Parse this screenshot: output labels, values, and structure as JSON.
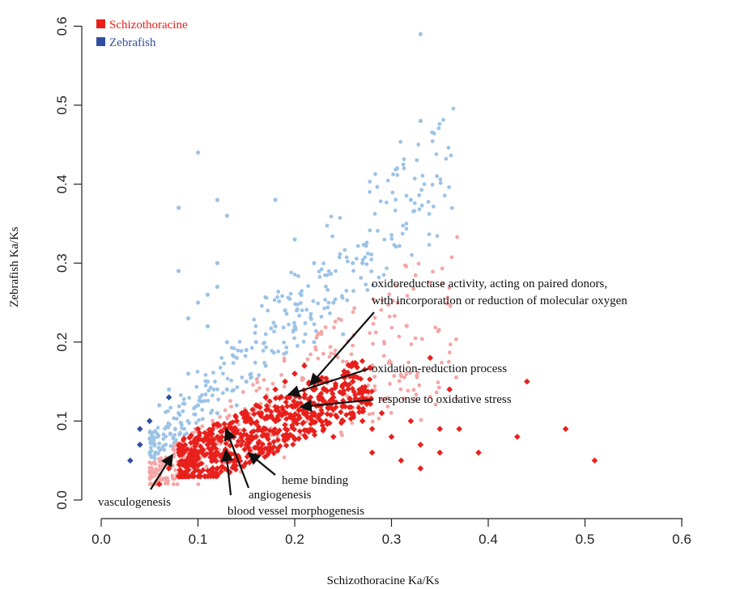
{
  "chart_data": {
    "type": "scatter",
    "xlabel": "Schizothoracine Ka/Ks",
    "ylabel": "Zebrafish Ka/Ks",
    "xlim": [
      -0.02,
      0.62
    ],
    "ylim": [
      -0.01,
      0.61
    ],
    "xticks": [
      "0.0",
      "0.1",
      "0.2",
      "0.3",
      "0.4",
      "0.5",
      "0.6"
    ],
    "yticks": [
      "0.0",
      "0.1",
      "0.2",
      "0.3",
      "0.4",
      "0.5",
      "0.6"
    ],
    "grid": false,
    "legend_position": "top-left",
    "colors": {
      "schizothoracine": "#e8201c",
      "schizothoracine_light": "#f4a6a6",
      "zebrafish": "#2f4f9e",
      "zebrafish_light": "#9dc3e6"
    },
    "series": [
      {
        "name": "Schizothoracine",
        "color": "#e8201c",
        "marker": "diamond",
        "points": [
          [
            0.08,
            0.03
          ],
          [
            0.09,
            0.05
          ],
          [
            0.1,
            0.06
          ],
          [
            0.11,
            0.07
          ],
          [
            0.12,
            0.08
          ],
          [
            0.13,
            0.09
          ],
          [
            0.14,
            0.1
          ],
          [
            0.15,
            0.11
          ],
          [
            0.16,
            0.12
          ],
          [
            0.17,
            0.13
          ],
          [
            0.18,
            0.14
          ],
          [
            0.19,
            0.15
          ],
          [
            0.2,
            0.16
          ],
          [
            0.21,
            0.17
          ],
          [
            0.22,
            0.15
          ],
          [
            0.23,
            0.14
          ],
          [
            0.24,
            0.13
          ],
          [
            0.25,
            0.12
          ],
          [
            0.26,
            0.11
          ],
          [
            0.27,
            0.1
          ],
          [
            0.28,
            0.09
          ],
          [
            0.3,
            0.08
          ],
          [
            0.32,
            0.1
          ],
          [
            0.33,
            0.07
          ],
          [
            0.34,
            0.18
          ],
          [
            0.35,
            0.09
          ],
          [
            0.36,
            0.14
          ],
          [
            0.37,
            0.09
          ],
          [
            0.39,
            0.06
          ],
          [
            0.43,
            0.08
          ],
          [
            0.44,
            0.15
          ],
          [
            0.48,
            0.09
          ],
          [
            0.51,
            0.05
          ],
          [
            0.06,
            0.02
          ],
          [
            0.07,
            0.04
          ],
          [
            0.1,
            0.09
          ],
          [
            0.12,
            0.04
          ],
          [
            0.13,
            0.06
          ],
          [
            0.14,
            0.05
          ],
          [
            0.15,
            0.07
          ],
          [
            0.16,
            0.08
          ],
          [
            0.17,
            0.09
          ],
          [
            0.18,
            0.1
          ],
          [
            0.19,
            0.11
          ],
          [
            0.2,
            0.12
          ],
          [
            0.21,
            0.13
          ],
          [
            0.22,
            0.11
          ],
          [
            0.23,
            0.09
          ],
          [
            0.24,
            0.08
          ],
          [
            0.25,
            0.1
          ],
          [
            0.26,
            0.15
          ],
          [
            0.27,
            0.13
          ],
          [
            0.28,
            0.06
          ],
          [
            0.29,
            0.11
          ],
          [
            0.31,
            0.05
          ],
          [
            0.33,
            0.04
          ],
          [
            0.35,
            0.06
          ]
        ]
      },
      {
        "name": "Zebrafish",
        "color": "#2f4f9e",
        "marker": "diamond",
        "points": [
          [
            0.04,
            0.09
          ],
          [
            0.07,
            0.13
          ],
          [
            0.11,
            0.26
          ],
          [
            0.1,
            0.44
          ],
          [
            0.12,
            0.38
          ],
          [
            0.13,
            0.36
          ],
          [
            0.18,
            0.38
          ],
          [
            0.2,
            0.33
          ],
          [
            0.33,
            0.59
          ],
          [
            0.33,
            0.48
          ],
          [
            0.32,
            0.38
          ],
          [
            0.27,
            0.3
          ],
          [
            0.26,
            0.3
          ],
          [
            0.22,
            0.3
          ],
          [
            0.24,
            0.25
          ],
          [
            0.08,
            0.29
          ],
          [
            0.08,
            0.37
          ],
          [
            0.12,
            0.3
          ],
          [
            0.12,
            0.27
          ],
          [
            0.1,
            0.25
          ],
          [
            0.09,
            0.23
          ],
          [
            0.11,
            0.22
          ],
          [
            0.13,
            0.2
          ],
          [
            0.14,
            0.18
          ],
          [
            0.15,
            0.19
          ],
          [
            0.16,
            0.2
          ],
          [
            0.18,
            0.22
          ],
          [
            0.19,
            0.24
          ],
          [
            0.17,
            0.17
          ],
          [
            0.15,
            0.15
          ],
          [
            0.13,
            0.14
          ],
          [
            0.11,
            0.15
          ],
          [
            0.09,
            0.16
          ],
          [
            0.07,
            0.14
          ],
          [
            0.06,
            0.12
          ],
          [
            0.05,
            0.1
          ],
          [
            0.04,
            0.07
          ],
          [
            0.03,
            0.05
          ],
          [
            0.08,
            0.11
          ],
          [
            0.1,
            0.12
          ],
          [
            0.12,
            0.11
          ],
          [
            0.14,
            0.12
          ],
          [
            0.2,
            0.22
          ],
          [
            0.22,
            0.2
          ],
          [
            0.25,
            0.21
          ]
        ]
      }
    ],
    "annotations": [
      {
        "lines": [
          "oxidoreductase activity,  acting  on paired donors,",
          "with incorporation  or reduction  of molecular  oxygen"
        ],
        "point": [
          0.185,
          0.135
        ]
      },
      {
        "lines": [
          "oxidation-reduction  process"
        ],
        "point": [
          0.19,
          0.135
        ]
      },
      {
        "lines": [
          "response to oxidative  stress"
        ],
        "point": [
          0.2,
          0.118
        ]
      },
      {
        "lines": [
          "heme  binding"
        ],
        "point": [
          0.15,
          0.058
        ]
      },
      {
        "lines": [
          "angiogenesis"
        ],
        "point": [
          0.13,
          0.085
        ]
      },
      {
        "lines": [
          "blood vessel  morphogenesis"
        ],
        "point": [
          0.127,
          0.06
        ]
      },
      {
        "lines": [
          "vasculogenesis"
        ],
        "point": [
          0.07,
          0.055
        ]
      }
    ]
  }
}
